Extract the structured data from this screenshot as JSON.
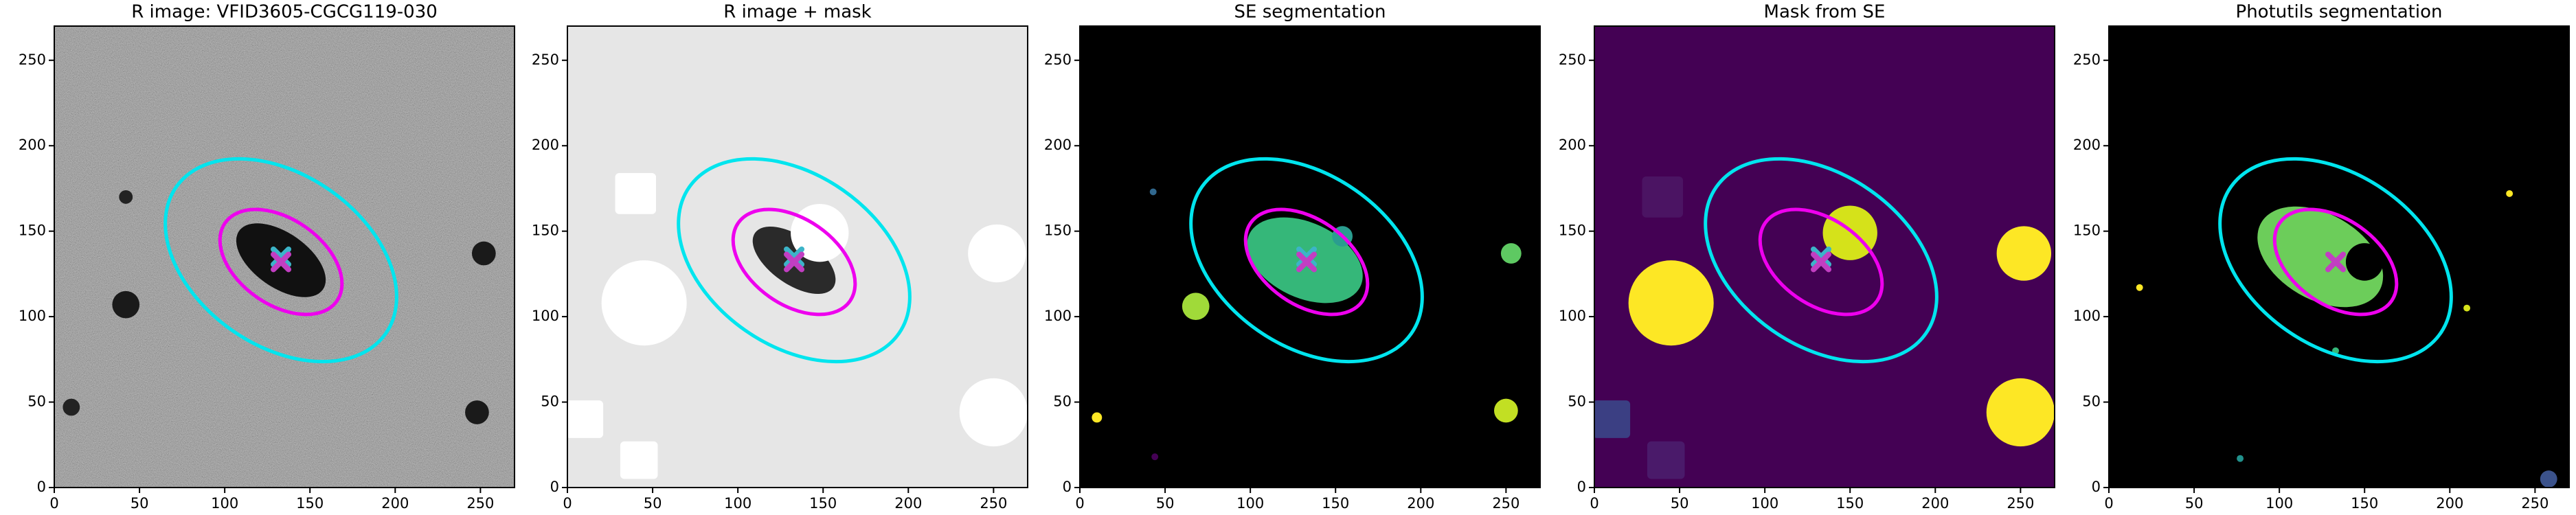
{
  "chart_data": [
    {
      "type": "image",
      "title": "R image: VFID3605-CGCG119-030",
      "background": "#5a5a5a",
      "noise": true,
      "xlim": [
        0,
        270
      ],
      "ylim": [
        0,
        270
      ],
      "xticks": [
        0,
        50,
        100,
        150,
        200,
        250
      ],
      "yticks": [
        0,
        50,
        100,
        150,
        200,
        250
      ],
      "regions": [
        {
          "shape": "ellipse",
          "cx": 133,
          "cy": 133,
          "rx": 30,
          "ry": 16,
          "angle": -35,
          "color": "#111111"
        },
        {
          "shape": "circle",
          "cx": 42,
          "cy": 107,
          "r": 8,
          "color": "#1a1a1a"
        },
        {
          "shape": "circle",
          "cx": 252,
          "cy": 137,
          "r": 7,
          "color": "#1a1a1a"
        },
        {
          "shape": "circle",
          "cx": 248,
          "cy": 44,
          "r": 7,
          "color": "#1a1a1a"
        },
        {
          "shape": "circle",
          "cx": 10,
          "cy": 47,
          "r": 5,
          "color": "#222222"
        },
        {
          "shape": "circle",
          "cx": 42,
          "cy": 170,
          "r": 4,
          "color": "#222222"
        }
      ],
      "ellipses": [
        {
          "cx": 133,
          "cy": 133,
          "a": 75,
          "b": 50,
          "angle": -35,
          "color": "#00e5ee"
        },
        {
          "cx": 133,
          "cy": 132,
          "a": 40,
          "b": 25,
          "angle": -35,
          "color": "#ee00ee"
        }
      ],
      "markers": [
        {
          "x": 133,
          "y": 135,
          "color": "#3cb4c8"
        },
        {
          "x": 133,
          "y": 132,
          "color": "#c23ec2"
        }
      ]
    },
    {
      "type": "image",
      "title": "R image + mask",
      "background": "#e6e6e6",
      "noise": false,
      "xlim": [
        0,
        270
      ],
      "ylim": [
        0,
        270
      ],
      "xticks": [
        0,
        50,
        100,
        150,
        200,
        250
      ],
      "yticks": [
        0,
        50,
        100,
        150,
        200,
        250
      ],
      "regions": [
        {
          "shape": "ellipse",
          "cx": 133,
          "cy": 133,
          "rx": 28,
          "ry": 14,
          "angle": -35,
          "color": "#2a2a2a"
        },
        {
          "shape": "circle",
          "cx": 45,
          "cy": 108,
          "r": 25,
          "color": "#ffffff"
        },
        {
          "shape": "square",
          "cx": 40,
          "cy": 172,
          "r": 12,
          "color": "#ffffff"
        },
        {
          "shape": "circle",
          "cx": 148,
          "cy": 149,
          "r": 17,
          "color": "#ffffff"
        },
        {
          "shape": "circle",
          "cx": 252,
          "cy": 137,
          "r": 17,
          "color": "#ffffff"
        },
        {
          "shape": "circle",
          "cx": 250,
          "cy": 44,
          "r": 20,
          "color": "#ffffff"
        },
        {
          "shape": "square",
          "cx": 10,
          "cy": 40,
          "r": 11,
          "color": "#ffffff"
        },
        {
          "shape": "square",
          "cx": 42,
          "cy": 16,
          "r": 11,
          "color": "#ffffff"
        }
      ],
      "ellipses": [
        {
          "cx": 133,
          "cy": 133,
          "a": 75,
          "b": 50,
          "angle": -35,
          "color": "#00e5ee"
        },
        {
          "cx": 133,
          "cy": 132,
          "a": 40,
          "b": 25,
          "angle": -35,
          "color": "#ee00ee"
        }
      ],
      "markers": [
        {
          "x": 133,
          "y": 135,
          "color": "#3cb4c8"
        },
        {
          "x": 133,
          "y": 132,
          "color": "#c23ec2"
        }
      ]
    },
    {
      "type": "image",
      "title": "SE segmentation",
      "background": "#000000",
      "noise": false,
      "xlim": [
        0,
        270
      ],
      "ylim": [
        0,
        270
      ],
      "xticks": [
        0,
        50,
        100,
        150,
        200,
        250
      ],
      "yticks": [
        0,
        50,
        100,
        150,
        200,
        250
      ],
      "regions": [
        {
          "shape": "ellipse",
          "cx": 132,
          "cy": 133,
          "rx": 36,
          "ry": 22,
          "angle": -25,
          "color": "#35b779"
        },
        {
          "shape": "circle",
          "cx": 154,
          "cy": 147,
          "r": 6,
          "color": "#2a9d8f"
        },
        {
          "shape": "circle",
          "cx": 68,
          "cy": 106,
          "r": 8,
          "color": "#a0da39"
        },
        {
          "shape": "circle",
          "cx": 253,
          "cy": 137,
          "r": 6,
          "color": "#5ec962"
        },
        {
          "shape": "circle",
          "cx": 250,
          "cy": 45,
          "r": 7,
          "color": "#c2df23"
        },
        {
          "shape": "circle",
          "cx": 10,
          "cy": 41,
          "r": 3,
          "color": "#fde725"
        },
        {
          "shape": "circle",
          "cx": 44,
          "cy": 18,
          "r": 2,
          "color": "#440154"
        },
        {
          "shape": "circle",
          "cx": 43,
          "cy": 173,
          "r": 2,
          "color": "#31688e"
        }
      ],
      "ellipses": [
        {
          "cx": 133,
          "cy": 133,
          "a": 75,
          "b": 50,
          "angle": -35,
          "color": "#00e5ee"
        },
        {
          "cx": 133,
          "cy": 132,
          "a": 40,
          "b": 25,
          "angle": -35,
          "color": "#ee00ee"
        }
      ],
      "markers": [
        {
          "x": 133,
          "y": 135,
          "color": "#3cb4c8"
        },
        {
          "x": 133,
          "y": 132,
          "color": "#c23ec2"
        }
      ]
    },
    {
      "type": "image",
      "title": "Mask from SE",
      "background": "#440154",
      "noise": false,
      "xlim": [
        0,
        270
      ],
      "ylim": [
        0,
        270
      ],
      "xticks": [
        0,
        50,
        100,
        150,
        200,
        250
      ],
      "yticks": [
        0,
        50,
        100,
        150,
        200,
        250
      ],
      "regions": [
        {
          "shape": "circle",
          "cx": 45,
          "cy": 108,
          "r": 25,
          "color": "#fde725"
        },
        {
          "shape": "square",
          "cx": 40,
          "cy": 170,
          "r": 12,
          "color": "#4b1463"
        },
        {
          "shape": "circle",
          "cx": 150,
          "cy": 149,
          "r": 16,
          "color": "#d5e21a"
        },
        {
          "shape": "circle",
          "cx": 252,
          "cy": 137,
          "r": 16,
          "color": "#fde725"
        },
        {
          "shape": "circle",
          "cx": 250,
          "cy": 44,
          "r": 20,
          "color": "#fde725"
        },
        {
          "shape": "square",
          "cx": 10,
          "cy": 40,
          "r": 11,
          "color": "#3b3f83"
        },
        {
          "shape": "square",
          "cx": 42,
          "cy": 16,
          "r": 11,
          "color": "#4a1a6a"
        }
      ],
      "ellipses": [
        {
          "cx": 133,
          "cy": 133,
          "a": 75,
          "b": 50,
          "angle": -35,
          "color": "#00e5ee"
        },
        {
          "cx": 133,
          "cy": 132,
          "a": 40,
          "b": 25,
          "angle": -35,
          "color": "#ee00ee"
        }
      ],
      "markers": [
        {
          "x": 133,
          "y": 135,
          "color": "#3cb4c8"
        },
        {
          "x": 133,
          "y": 132,
          "color": "#c23ec2"
        }
      ]
    },
    {
      "type": "image",
      "title": "Photutils segmentation",
      "background": "#000000",
      "noise": false,
      "xlim": [
        0,
        270
      ],
      "ylim": [
        0,
        270
      ],
      "xticks": [
        0,
        50,
        100,
        150,
        200,
        250
      ],
      "yticks": [
        0,
        50,
        100,
        150,
        200,
        250
      ],
      "regions": [
        {
          "shape": "ellipse",
          "cx": 124,
          "cy": 135,
          "rx": 40,
          "ry": 25,
          "angle": -30,
          "color": "#6ccd5a"
        },
        {
          "shape": "circle",
          "cx": 150,
          "cy": 132,
          "r": 11,
          "color": "#000000"
        },
        {
          "shape": "circle",
          "cx": 235,
          "cy": 172,
          "r": 2,
          "color": "#fde725"
        },
        {
          "shape": "circle",
          "cx": 18,
          "cy": 117,
          "r": 2,
          "color": "#fde725"
        },
        {
          "shape": "circle",
          "cx": 210,
          "cy": 105,
          "r": 2,
          "color": "#d5e21a"
        },
        {
          "shape": "circle",
          "cx": 77,
          "cy": 17,
          "r": 2,
          "color": "#21918c"
        },
        {
          "shape": "circle",
          "cx": 133,
          "cy": 80,
          "r": 2,
          "color": "#35b779"
        },
        {
          "shape": "circle",
          "cx": 258,
          "cy": 5,
          "r": 5,
          "color": "#3b528b"
        }
      ],
      "ellipses": [
        {
          "cx": 133,
          "cy": 133,
          "a": 75,
          "b": 50,
          "angle": -35,
          "color": "#00e5ee"
        },
        {
          "cx": 133,
          "cy": 132,
          "a": 40,
          "b": 25,
          "angle": -35,
          "color": "#ee00ee"
        }
      ],
      "markers": [
        {
          "x": 133,
          "y": 132,
          "color": "#c23ec2"
        }
      ]
    }
  ]
}
